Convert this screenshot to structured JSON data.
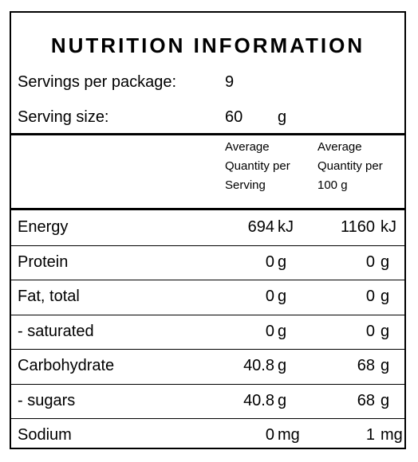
{
  "title": "NUTRITION INFORMATION",
  "servings_per_package": {
    "label": "Servings per package:",
    "value": "9"
  },
  "serving_size": {
    "label": "Serving size:",
    "value": "60",
    "unit": "g"
  },
  "columns": {
    "per_serving": "Average\nQuantity per\nServing",
    "per_100g": "Average\nQuantity per\n100 g"
  },
  "rows": [
    {
      "label": "Energy",
      "serving": "694",
      "serving_unit": "kJ",
      "per100": "1160",
      "per100_unit": "kJ"
    },
    {
      "label": "Protein",
      "serving": "0",
      "serving_unit": "g",
      "per100": "0",
      "per100_unit": "g"
    },
    {
      "label": "Fat, total",
      "serving": "0",
      "serving_unit": "g",
      "per100": "0",
      "per100_unit": "g"
    },
    {
      "label": "- saturated",
      "serving": "0",
      "serving_unit": "g",
      "per100": "0",
      "per100_unit": "g"
    },
    {
      "label": "Carbohydrate",
      "serving": "40.8",
      "serving_unit": "g",
      "per100": "68",
      "per100_unit": "g"
    },
    {
      "label": "- sugars",
      "serving": "40.8",
      "serving_unit": "g",
      "per100": "68",
      "per100_unit": "g"
    },
    {
      "label": "Sodium",
      "serving": "0",
      "serving_unit": "mg",
      "per100": "1",
      "per100_unit": "mg"
    }
  ]
}
